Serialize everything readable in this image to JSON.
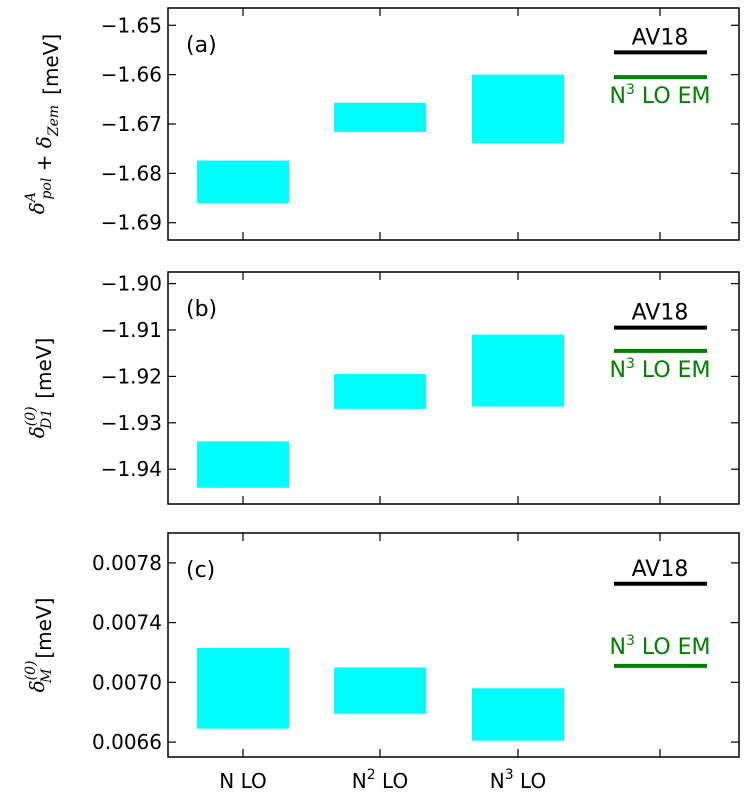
{
  "colors": {
    "band": "#00ffff",
    "av18": "#000000",
    "n3lo_em": "#008000",
    "frame": "#000000"
  },
  "x_categories": [
    {
      "base": "N",
      "sup": "",
      "tail": " LO"
    },
    {
      "base": "N",
      "sup": "2",
      "tail": " LO"
    },
    {
      "base": "N",
      "sup": "3",
      "tail": " LO"
    }
  ],
  "legend": {
    "av18": "AV18",
    "n3lo_em": {
      "base": "N",
      "sup": "3",
      "tail": " LO EM"
    }
  },
  "panels": [
    {
      "label": "(a)",
      "ylabel": {
        "sym": "δ",
        "sub": "pol",
        "sup": "A",
        "mid": " + ",
        "sym2": "δ",
        "sub2": "Zem",
        "unit": "[meV]"
      },
      "ticks": [
        "−1.65",
        "−1.66",
        "−1.67",
        "−1.68",
        "−1.69"
      ]
    },
    {
      "label": "(b)",
      "ylabel": {
        "sym": "δ",
        "sub": "D1",
        "sup": "(0)",
        "unit": "[meV]"
      },
      "ticks": [
        "−1.90",
        "−1.91",
        "−1.92",
        "−1.93",
        "−1.94"
      ]
    },
    {
      "label": "(c)",
      "ylabel": {
        "sym": "δ",
        "sub": "M",
        "sup": "(0)",
        "unit": "[meV]"
      },
      "ticks": [
        "0.0078",
        "0.0074",
        "0.0070",
        "0.0066"
      ]
    }
  ],
  "chart_data": [
    {
      "type": "bar",
      "title": "(a)",
      "ylabel": "δ_pol^A + δ_Zem [meV]",
      "categories": [
        "N LO",
        "N2 LO",
        "N3 LO"
      ],
      "ylim": [
        -1.6935,
        -1.6465
      ],
      "yticks": [
        -1.65,
        -1.66,
        -1.67,
        -1.68,
        -1.69
      ],
      "ranges": [
        [
          -1.686,
          -1.6774
        ],
        [
          -1.6716,
          -1.6657
        ],
        [
          -1.6739,
          -1.66
        ]
      ],
      "reference_lines": [
        {
          "name": "AV18",
          "value": -1.6555,
          "color": "#000000"
        },
        {
          "name": "N3 LO EM",
          "value": -1.6605,
          "color": "#008000"
        }
      ]
    },
    {
      "type": "bar",
      "title": "(b)",
      "ylabel": "δ_D1^(0) [meV]",
      "categories": [
        "N LO",
        "N2 LO",
        "N3 LO"
      ],
      "ylim": [
        -1.9475,
        -1.8975
      ],
      "yticks": [
        -1.9,
        -1.91,
        -1.92,
        -1.93,
        -1.94
      ],
      "ranges": [
        [
          -1.944,
          -1.934
        ],
        [
          -1.927,
          -1.9195
        ],
        [
          -1.9265,
          -1.911
        ]
      ],
      "reference_lines": [
        {
          "name": "AV18",
          "value": -1.9095,
          "color": "#000000"
        },
        {
          "name": "N3 LO EM",
          "value": -1.9145,
          "color": "#008000"
        }
      ]
    },
    {
      "type": "bar",
      "title": "(c)",
      "ylabel": "δ_M^(0) [meV]",
      "categories": [
        "N LO",
        "N2 LO",
        "N3 LO"
      ],
      "ylim": [
        0.0065,
        0.008
      ],
      "yticks": [
        0.0078,
        0.0074,
        0.007,
        0.0066
      ],
      "ranges": [
        [
          0.00669,
          0.00723
        ],
        [
          0.00679,
          0.0071
        ],
        [
          0.00661,
          0.00696
        ]
      ],
      "reference_lines": [
        {
          "name": "AV18",
          "value": 0.00766,
          "color": "#000000"
        },
        {
          "name": "N3 LO EM",
          "value": 0.00711,
          "color": "#008000"
        }
      ]
    }
  ]
}
